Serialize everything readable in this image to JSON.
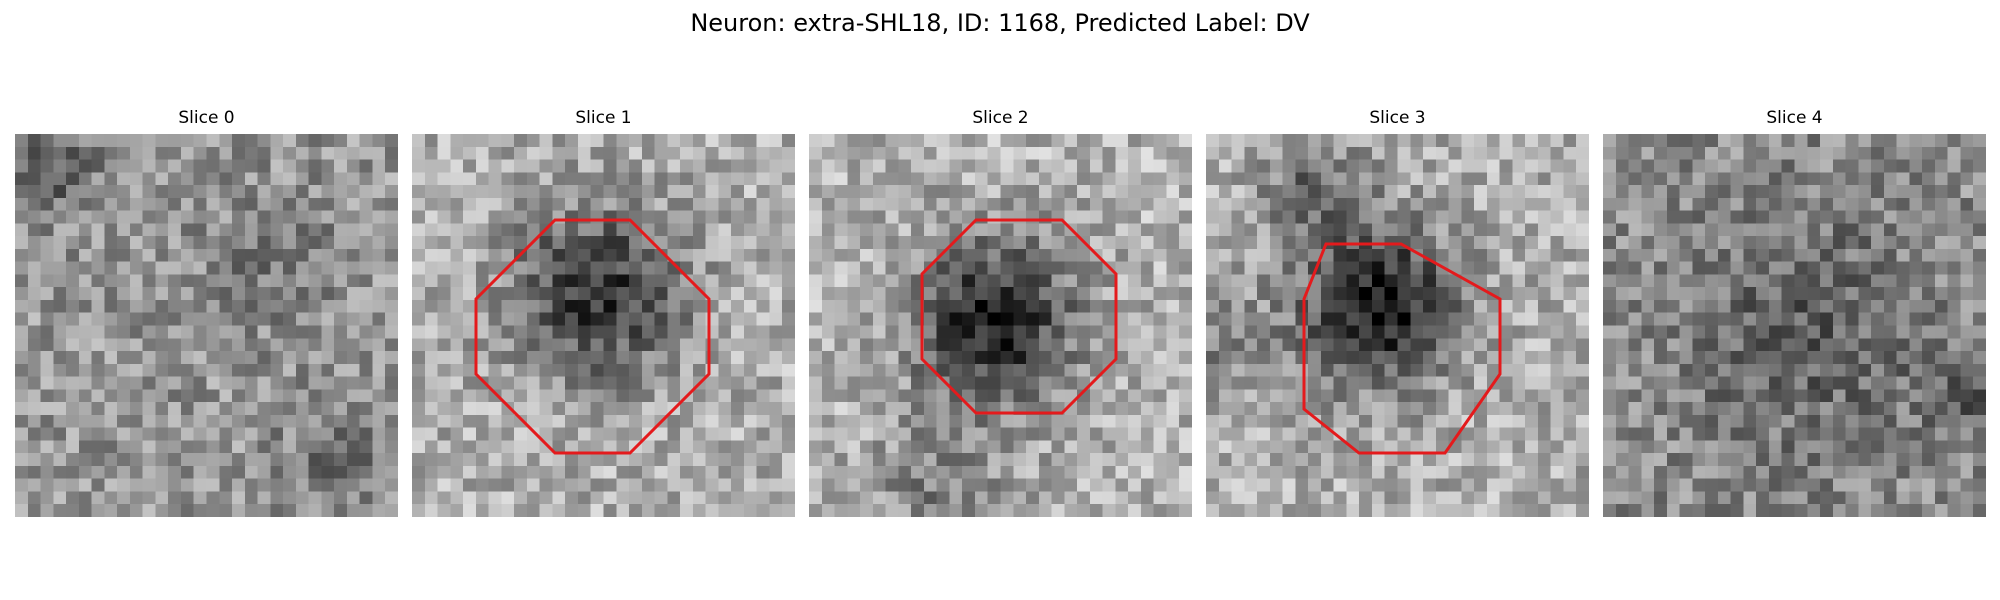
{
  "figure": {
    "title": "Neuron: extra-SHL18, ID: 1168, Predicted Label: DV"
  },
  "colors": {
    "roi_outline": "#e41a1c",
    "colormap": "grayscale"
  },
  "panels": [
    {
      "label": "Slice 0",
      "roi_outline": false
    },
    {
      "label": "Slice 1",
      "roi_outline": true
    },
    {
      "label": "Slice 2",
      "roi_outline": true
    },
    {
      "label": "Slice 3",
      "roi_outline": true
    },
    {
      "label": "Slice 4",
      "roi_outline": false
    }
  ]
}
